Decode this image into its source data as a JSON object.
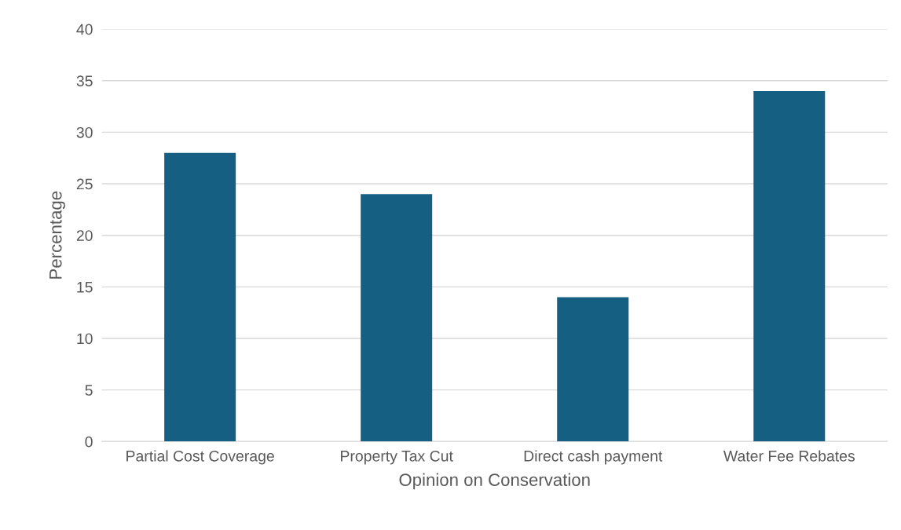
{
  "chart_data": {
    "type": "bar",
    "xlabel": "Opinion on Conservation",
    "ylabel": "Percentage",
    "categories": [
      "Partial Cost Coverage",
      "Property Tax Cut",
      "Direct cash payment",
      "Water Fee Rebates"
    ],
    "values": [
      28,
      24,
      14,
      34
    ],
    "color": "#156082",
    "ylim": [
      0,
      40
    ],
    "yticks": [
      0,
      5,
      10,
      15,
      20,
      25,
      30,
      35,
      40
    ],
    "grid": "y",
    "legend": false
  }
}
